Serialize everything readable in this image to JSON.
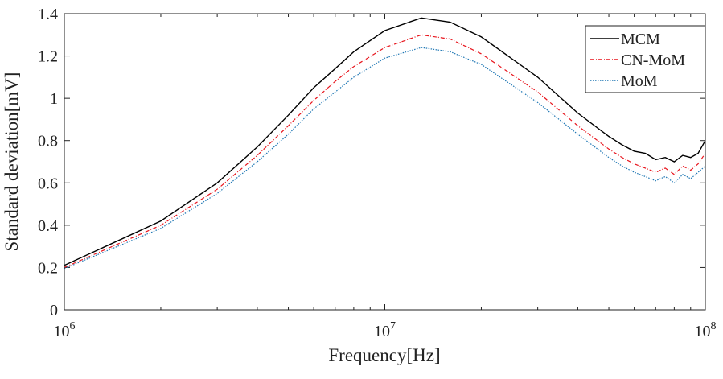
{
  "chart_data": {
    "type": "line",
    "title": "",
    "xlabel": "Frequency[Hz]",
    "ylabel": "Standard deviation[mV]",
    "xscale": "log",
    "xlim": [
      1000000,
      100000000
    ],
    "ylim": [
      0,
      1.4
    ],
    "yticks": [
      0,
      0.2,
      0.4,
      0.6,
      0.8,
      1,
      1.2,
      1.4
    ],
    "ytick_labels": [
      "0",
      "0.2",
      "0.4",
      "0.6",
      "0.8",
      "1",
      "1.2",
      "1.4"
    ],
    "xticks": [
      {
        "value": 1000000,
        "base": "10",
        "exp": "6"
      },
      {
        "value": 10000000,
        "base": "10",
        "exp": "7"
      },
      {
        "value": 100000000,
        "base": "10",
        "exp": "8"
      }
    ],
    "legend_position": "top-right",
    "x": [
      1000000.0,
      2000000.0,
      3000000.0,
      4000000.0,
      5000000.0,
      6000000.0,
      7000000.0,
      8000000.0,
      10000000.0,
      13000000.0,
      16000000.0,
      20000000.0,
      30000000.0,
      40000000.0,
      50000000.0,
      55000000.0,
      60000000.0,
      65000000.0,
      70000000.0,
      75000000.0,
      80000000.0,
      85000000.0,
      90000000.0,
      95000000.0,
      100000000.0
    ],
    "series": [
      {
        "name": "MCM",
        "color": "#000000",
        "dash": "solid",
        "values": [
          0.21,
          0.42,
          0.6,
          0.77,
          0.92,
          1.05,
          1.14,
          1.22,
          1.32,
          1.38,
          1.36,
          1.29,
          1.1,
          0.93,
          0.82,
          0.78,
          0.75,
          0.74,
          0.71,
          0.72,
          0.7,
          0.73,
          0.72,
          0.74,
          0.8
        ]
      },
      {
        "name": "CN-MoM",
        "color": "#e8141c",
        "dash": "dashdot",
        "values": [
          0.2,
          0.4,
          0.57,
          0.73,
          0.87,
          0.99,
          1.08,
          1.15,
          1.24,
          1.3,
          1.28,
          1.21,
          1.03,
          0.87,
          0.76,
          0.72,
          0.69,
          0.67,
          0.65,
          0.67,
          0.64,
          0.68,
          0.66,
          0.69,
          0.74
        ]
      },
      {
        "name": "MoM",
        "color": "#1f77b4",
        "dash": "dotted",
        "values": [
          0.195,
          0.385,
          0.55,
          0.7,
          0.83,
          0.95,
          1.03,
          1.1,
          1.19,
          1.24,
          1.22,
          1.16,
          0.98,
          0.83,
          0.72,
          0.68,
          0.65,
          0.63,
          0.61,
          0.63,
          0.6,
          0.64,
          0.62,
          0.65,
          0.68
        ]
      }
    ]
  }
}
